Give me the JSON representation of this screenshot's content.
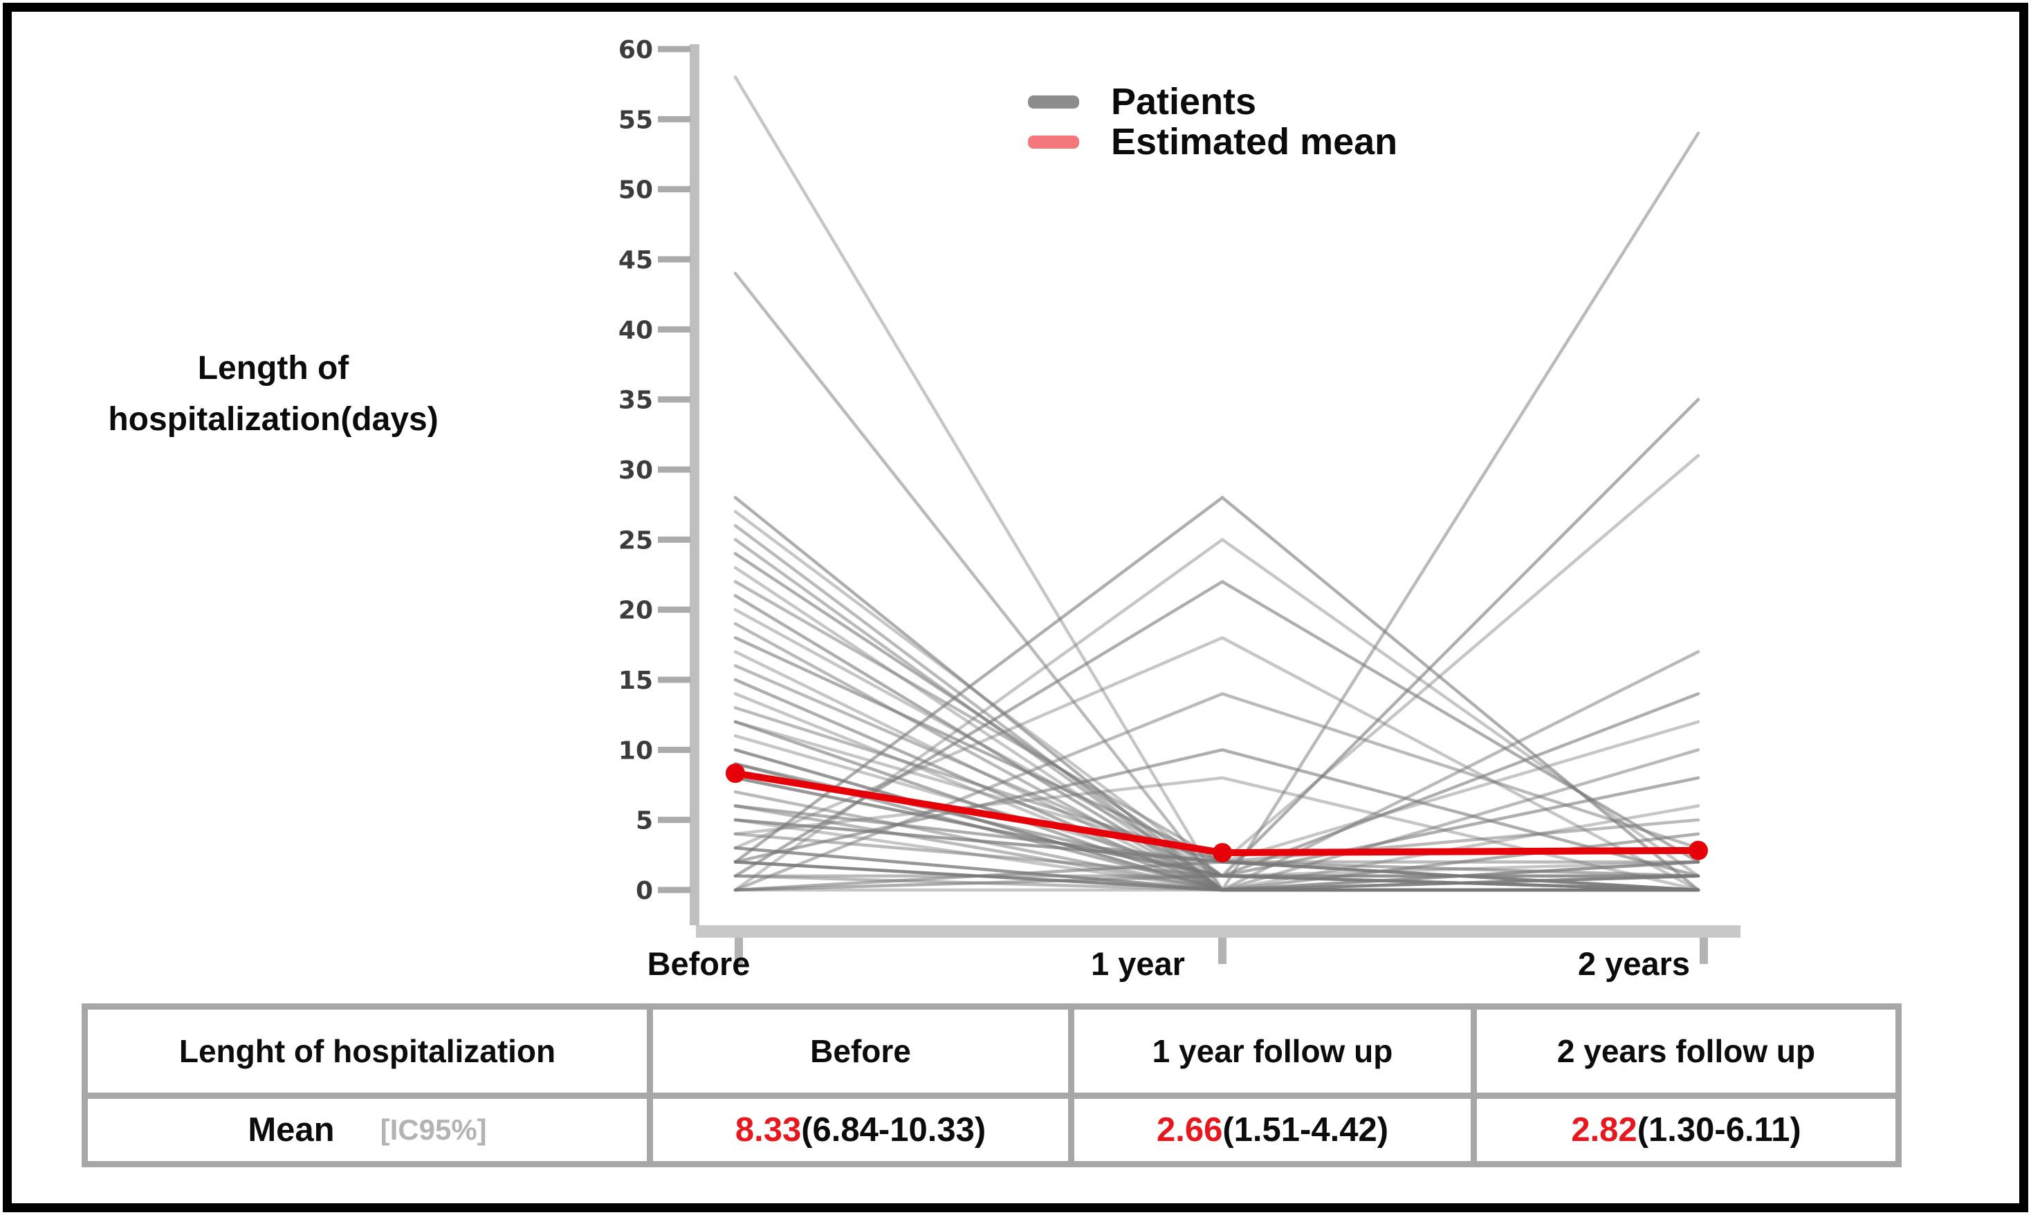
{
  "figure": {
    "y_axis_title_line1": "Length of",
    "y_axis_title_line2": "hospitalization(days)",
    "legend": {
      "patients_label": "Patients",
      "mean_label": "Estimated mean",
      "patients_color": "#8d8d8d",
      "mean_color": "#f4777c"
    },
    "x_labels": [
      "Before",
      "1 year",
      "2 years"
    ]
  },
  "chart_data": {
    "type": "line",
    "x_categories": [
      "Before",
      "1 year",
      "2 years"
    ],
    "ylabel": "Length of hospitalization(days)",
    "ylim": [
      0,
      60
    ],
    "y_ticks": [
      0,
      5,
      10,
      15,
      20,
      25,
      30,
      35,
      40,
      45,
      50,
      55,
      60
    ],
    "grid": false,
    "legend_position": "top-center",
    "series": [
      {
        "name": "Estimated mean",
        "values": [
          8.33,
          2.66,
          2.82
        ],
        "ci95": [
          [
            6.84,
            10.33
          ],
          [
            1.51,
            4.42
          ],
          [
            1.3,
            6.11
          ]
        ],
        "color": "#e60007"
      }
    ],
    "patients_color": "#787878",
    "patients": [
      [
        58,
        0,
        0
      ],
      [
        44,
        0,
        0
      ],
      [
        28,
        0,
        0
      ],
      [
        27,
        1,
        0
      ],
      [
        26,
        0,
        1
      ],
      [
        2,
        28,
        0
      ],
      [
        0,
        25,
        1
      ],
      [
        1,
        0,
        54
      ],
      [
        0,
        1,
        35
      ],
      [
        5,
        2,
        31
      ],
      [
        25,
        0,
        0
      ],
      [
        24,
        1,
        1
      ],
      [
        23,
        0,
        0
      ],
      [
        22,
        2,
        0
      ],
      [
        21,
        0,
        2
      ],
      [
        20,
        1,
        0
      ],
      [
        19,
        0,
        0
      ],
      [
        18,
        2,
        1
      ],
      [
        17,
        0,
        0
      ],
      [
        16,
        1,
        0
      ],
      [
        15,
        0,
        1
      ],
      [
        14,
        0,
        0
      ],
      [
        13,
        2,
        2
      ],
      [
        12,
        0,
        0
      ],
      [
        11,
        1,
        0
      ],
      [
        10,
        0,
        1
      ],
      [
        9,
        0,
        0
      ],
      [
        8,
        1,
        2
      ],
      [
        7,
        0,
        0
      ],
      [
        6,
        2,
        0
      ],
      [
        5,
        0,
        0
      ],
      [
        4,
        1,
        1
      ],
      [
        3,
        0,
        0
      ],
      [
        2,
        0,
        0
      ],
      [
        1,
        1,
        0
      ],
      [
        1,
        22,
        2
      ],
      [
        3,
        18,
        0
      ],
      [
        0,
        14,
        3
      ],
      [
        2,
        10,
        1
      ],
      [
        4,
        8,
        0
      ],
      [
        10,
        0,
        17
      ],
      [
        8,
        1,
        14
      ],
      [
        12,
        2,
        12
      ],
      [
        6,
        0,
        10
      ],
      [
        9,
        1,
        8
      ],
      [
        3,
        0,
        6
      ],
      [
        5,
        2,
        5
      ],
      [
        2,
        0,
        4
      ],
      [
        0,
        0,
        2
      ],
      [
        2,
        0,
        0
      ],
      [
        0,
        2,
        0
      ]
    ]
  },
  "table": {
    "headers": [
      "Lenght of hospitalization",
      "Before",
      "1 year follow up",
      "2 years follow up"
    ],
    "row_label": "Mean",
    "row_sublabel": "[IC95%]",
    "cells": [
      {
        "mean": "8.33",
        "ci": "(6.84-10.33)"
      },
      {
        "mean": "2.66",
        "ci": "(1.51-4.42)"
      },
      {
        "mean": "2.82",
        "ci": "(1.30-6.11)"
      }
    ]
  }
}
